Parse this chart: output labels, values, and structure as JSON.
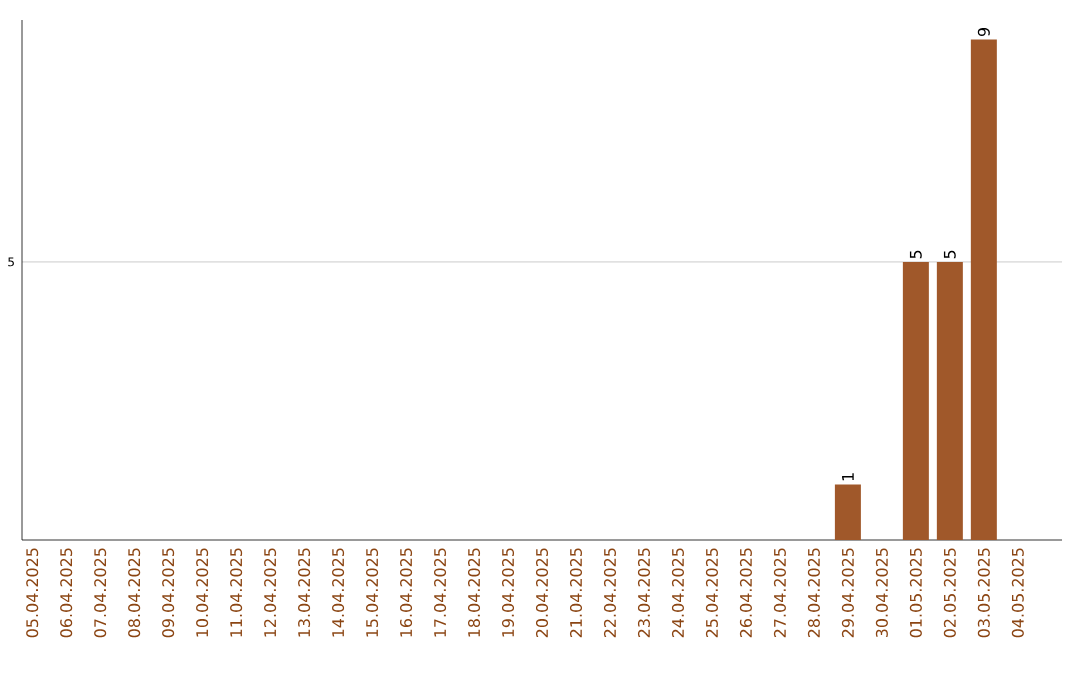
{
  "chart_data": {
    "type": "bar",
    "categories": [
      "05.04.2025",
      "06.04.2025",
      "07.04.2025",
      "08.04.2025",
      "09.04.2025",
      "10.04.2025",
      "11.04.2025",
      "12.04.2025",
      "13.04.2025",
      "14.04.2025",
      "15.04.2025",
      "16.04.2025",
      "17.04.2025",
      "18.04.2025",
      "19.04.2025",
      "20.04.2025",
      "21.04.2025",
      "22.04.2025",
      "23.04.2025",
      "24.04.2025",
      "25.04.2025",
      "26.04.2025",
      "27.04.2025",
      "28.04.2025",
      "29.04.2025",
      "30.04.2025",
      "01.05.2025",
      "02.05.2025",
      "03.05.2025",
      "04.05.2025"
    ],
    "values": [
      null,
      null,
      null,
      null,
      null,
      null,
      null,
      null,
      null,
      null,
      null,
      null,
      null,
      null,
      null,
      null,
      null,
      null,
      null,
      null,
      null,
      null,
      null,
      null,
      1,
      null,
      5,
      5,
      9,
      null
    ],
    "color": "#a0582a",
    "ylim": [
      0,
      9.35
    ],
    "yticks": [
      5
    ],
    "grid": "y",
    "data_labels": true
  }
}
